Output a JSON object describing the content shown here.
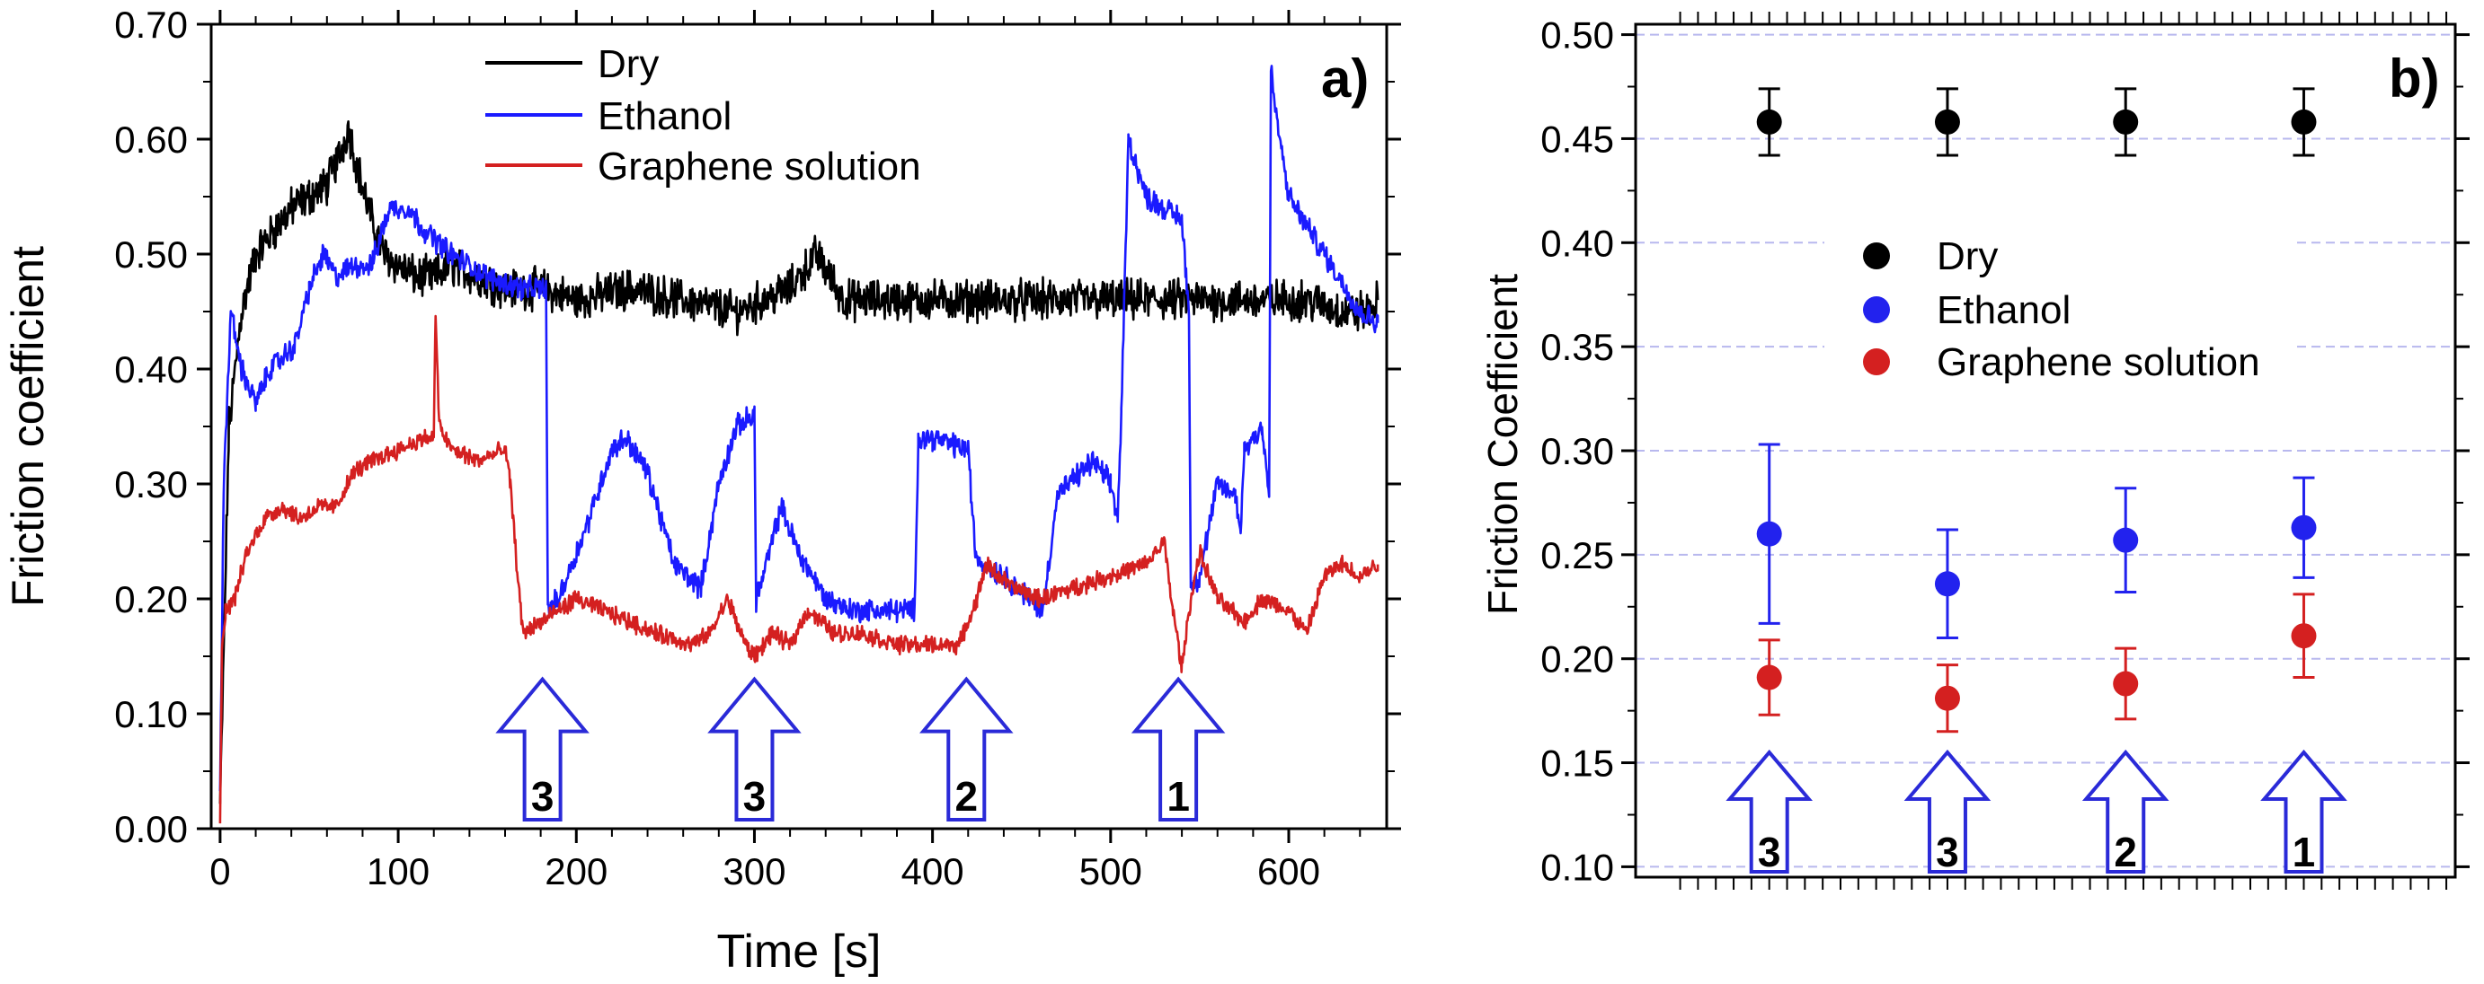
{
  "chart_data": [
    {
      "panel": "a)",
      "type": "line",
      "xlabel": "Time [s]",
      "ylabel": "Friction coefficient",
      "xlim": [
        -5,
        655
      ],
      "ylim": [
        0,
        0.7
      ],
      "xticks": [
        0,
        100,
        200,
        300,
        400,
        500,
        600
      ],
      "xtick_labels": [
        "0",
        "100",
        "200",
        "300",
        "400",
        "500",
        "600"
      ],
      "yticks": [
        0,
        0.1,
        0.2,
        0.3,
        0.4,
        0.5,
        0.6,
        0.7
      ],
      "ytick_labels": [
        "0.00",
        "0.10",
        "0.20",
        "0.30",
        "0.40",
        "0.50",
        "0.60",
        "0.70"
      ],
      "grid": false,
      "legend_position": "top-center",
      "series": [
        {
          "name": "Dry",
          "color": "#000000",
          "noise": 0.014,
          "x": [
            0,
            5,
            12,
            20,
            30,
            40,
            50,
            60,
            68,
            72,
            78,
            85,
            92,
            100,
            110,
            120,
            130,
            145,
            160,
            180,
            200,
            230,
            260,
            290,
            320,
            335,
            350,
            380,
            410,
            440,
            470,
            500,
            530,
            560,
            590,
            610,
            630,
            645,
            650
          ],
          "y": [
            0.02,
            0.35,
            0.45,
            0.5,
            0.52,
            0.54,
            0.55,
            0.56,
            0.59,
            0.61,
            0.57,
            0.53,
            0.5,
            0.49,
            0.48,
            0.48,
            0.49,
            0.48,
            0.47,
            0.47,
            0.46,
            0.47,
            0.46,
            0.45,
            0.47,
            0.5,
            0.46,
            0.46,
            0.46,
            0.46,
            0.46,
            0.46,
            0.46,
            0.46,
            0.46,
            0.46,
            0.45,
            0.45,
            0.46
          ]
        },
        {
          "name": "Ethanol",
          "color": "#1a1aff",
          "noise": 0.008,
          "x": [
            0,
            2,
            6,
            12,
            20,
            28,
            35,
            42,
            50,
            58,
            65,
            75,
            85,
            95,
            105,
            115,
            130,
            150,
            170,
            183,
            184,
            190,
            205,
            220,
            228,
            240,
            255,
            270,
            280,
            290,
            300,
            301,
            305,
            315,
            325,
            340,
            355,
            380,
            390,
            392,
            400,
            420,
            424,
            428,
            440,
            455,
            462,
            470,
            490,
            500,
            504,
            506,
            510,
            520,
            540,
            544,
            545,
            550,
            560,
            570,
            573,
            575,
            585,
            589,
            590,
            593,
            600,
            620,
            640,
            650
          ],
          "y": [
            0.03,
            0.3,
            0.45,
            0.4,
            0.37,
            0.4,
            0.41,
            0.42,
            0.47,
            0.5,
            0.48,
            0.49,
            0.49,
            0.54,
            0.54,
            0.52,
            0.5,
            0.48,
            0.47,
            0.47,
            0.19,
            0.2,
            0.26,
            0.33,
            0.34,
            0.31,
            0.23,
            0.21,
            0.3,
            0.35,
            0.36,
            0.2,
            0.22,
            0.28,
            0.24,
            0.2,
            0.19,
            0.19,
            0.19,
            0.34,
            0.34,
            0.33,
            0.24,
            0.23,
            0.22,
            0.2,
            0.19,
            0.29,
            0.32,
            0.3,
            0.27,
            0.36,
            0.6,
            0.55,
            0.53,
            0.45,
            0.21,
            0.22,
            0.3,
            0.29,
            0.26,
            0.33,
            0.35,
            0.29,
            0.66,
            0.62,
            0.55,
            0.5,
            0.45,
            0.44
          ]
        },
        {
          "name": "Graphene solution",
          "color": "#d42020",
          "noise": 0.006,
          "x": [
            0,
            1,
            3,
            8,
            15,
            25,
            35,
            45,
            55,
            65,
            75,
            85,
            100,
            115,
            120,
            121,
            123,
            130,
            145,
            160,
            163,
            166,
            170,
            180,
            190,
            200,
            215,
            230,
            245,
            265,
            275,
            285,
            290,
            295,
            300,
            310,
            320,
            330,
            345,
            360,
            380,
            400,
            415,
            425,
            430,
            445,
            460,
            480,
            500,
            520,
            530,
            535,
            540,
            545,
            550,
            560,
            575,
            585,
            600,
            610,
            620,
            630,
            640,
            650
          ],
          "y": [
            0.01,
            0.15,
            0.19,
            0.2,
            0.24,
            0.27,
            0.28,
            0.27,
            0.28,
            0.28,
            0.31,
            0.32,
            0.33,
            0.34,
            0.34,
            0.45,
            0.35,
            0.33,
            0.32,
            0.33,
            0.3,
            0.24,
            0.17,
            0.18,
            0.19,
            0.2,
            0.19,
            0.18,
            0.17,
            0.16,
            0.17,
            0.2,
            0.18,
            0.16,
            0.15,
            0.17,
            0.16,
            0.19,
            0.17,
            0.17,
            0.16,
            0.16,
            0.16,
            0.2,
            0.23,
            0.21,
            0.2,
            0.21,
            0.22,
            0.23,
            0.25,
            0.19,
            0.14,
            0.2,
            0.24,
            0.2,
            0.18,
            0.2,
            0.19,
            0.17,
            0.22,
            0.23,
            0.22,
            0.23
          ]
        }
      ],
      "arrows": [
        {
          "label": "3",
          "x": 181,
          "y_base": 0.0,
          "y_tip": 0.13
        },
        {
          "label": "3",
          "x": 300,
          "y_base": 0.0,
          "y_tip": 0.13
        },
        {
          "label": "2",
          "x": 419,
          "y_base": 0.0,
          "y_tip": 0.13
        },
        {
          "label": "1",
          "x": 538,
          "y_base": 0.0,
          "y_tip": 0.13
        }
      ]
    },
    {
      "panel": "b)",
      "type": "scatter",
      "xlabel": "",
      "ylabel": "Friction Coefficient",
      "xlim": [
        0,
        4.6
      ],
      "ylim": [
        0.095,
        0.505
      ],
      "yticks": [
        0.1,
        0.15,
        0.2,
        0.25,
        0.3,
        0.35,
        0.4,
        0.45,
        0.5
      ],
      "ytick_labels": [
        "0.10",
        "0.15",
        "0.20",
        "0.25",
        "0.30",
        "0.35",
        "0.40",
        "0.45",
        "0.50"
      ],
      "grid": true,
      "legend_position": "center",
      "categories": [
        "3",
        "3",
        "2",
        "1"
      ],
      "x": [
        0.75,
        1.75,
        2.75,
        3.75
      ],
      "series": [
        {
          "name": "Dry",
          "color": "#000000",
          "values": [
            0.458,
            0.458,
            0.458,
            0.458
          ],
          "errors": [
            0.016,
            0.016,
            0.016,
            0.016
          ]
        },
        {
          "name": "Ethanol",
          "color": "#2222ee",
          "values": [
            0.26,
            0.236,
            0.257,
            0.263
          ],
          "errors": [
            0.043,
            0.026,
            0.025,
            0.024
          ]
        },
        {
          "name": "Graphene solution",
          "color": "#d42020",
          "values": [
            0.191,
            0.181,
            0.188,
            0.211
          ],
          "errors": [
            0.018,
            0.016,
            0.017,
            0.02
          ]
        }
      ],
      "arrows": [
        {
          "label": "3",
          "x": 0.75,
          "y_base": 0.095,
          "y_tip": 0.155
        },
        {
          "label": "3",
          "x": 1.75,
          "y_base": 0.095,
          "y_tip": 0.155
        },
        {
          "label": "2",
          "x": 2.75,
          "y_base": 0.095,
          "y_tip": 0.155
        },
        {
          "label": "1",
          "x": 3.75,
          "y_base": 0.095,
          "y_tip": 0.155
        }
      ]
    }
  ]
}
